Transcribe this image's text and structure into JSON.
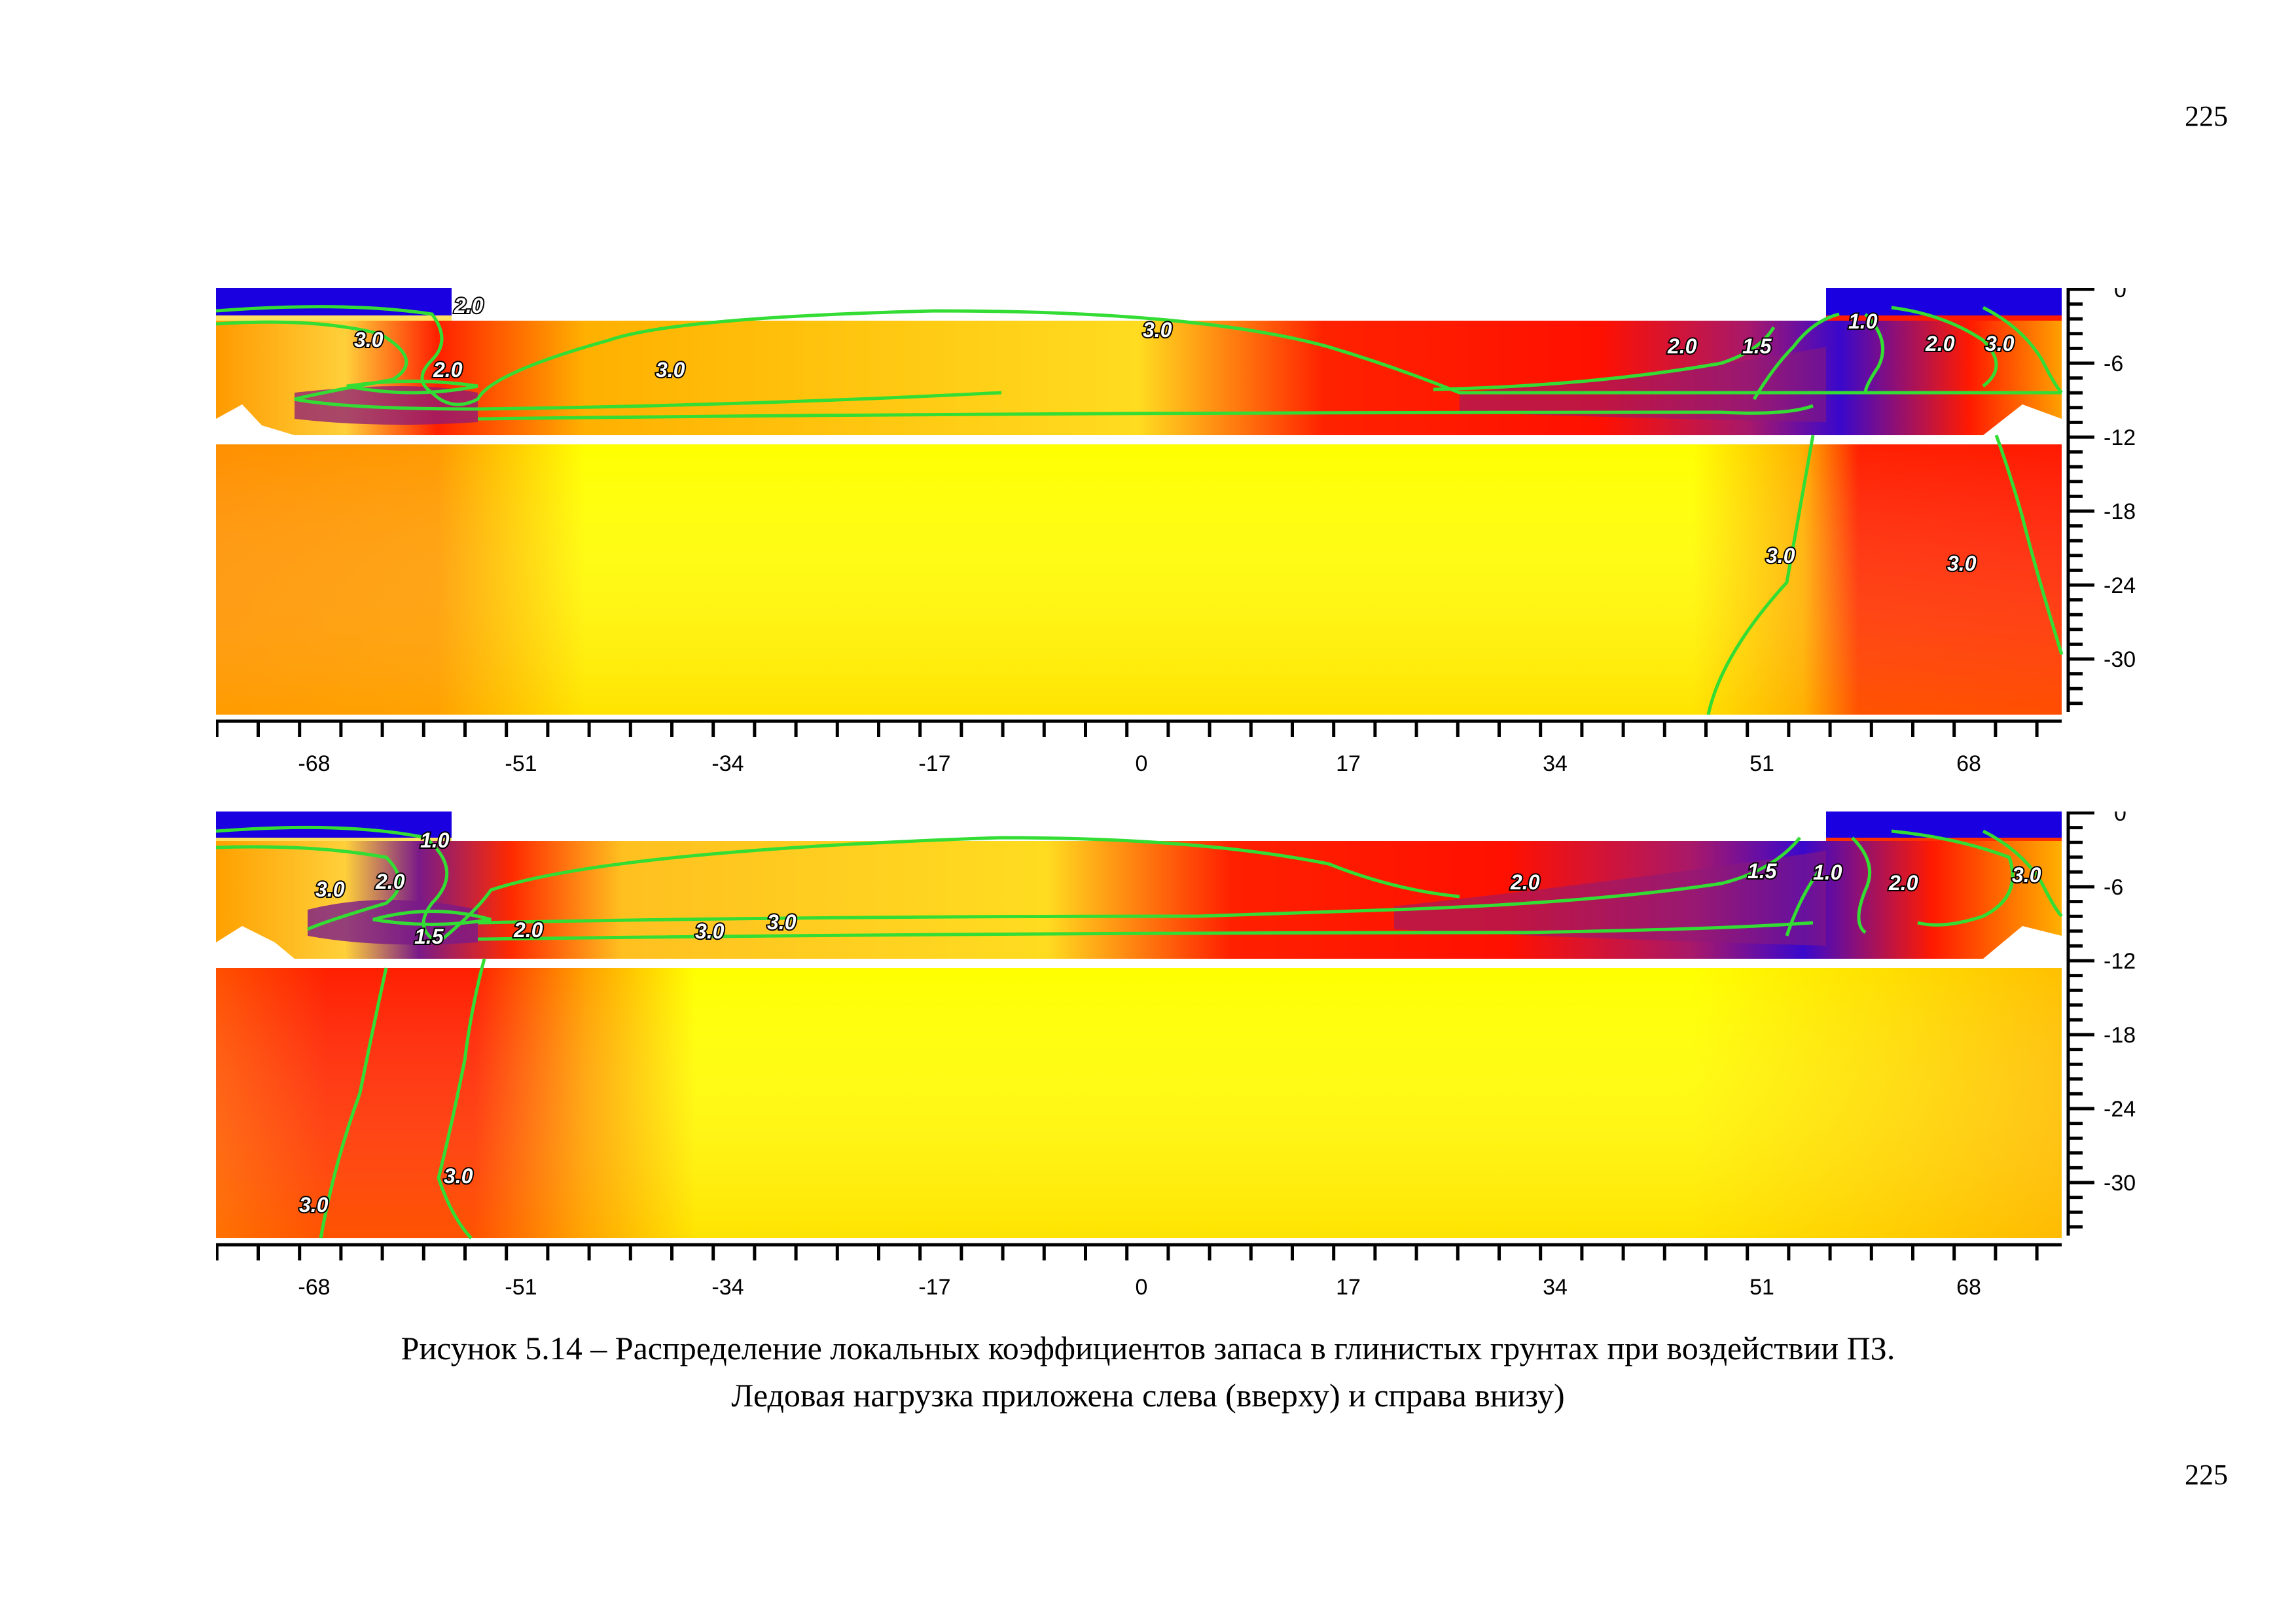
{
  "page": {
    "number_top": "225",
    "number_bottom": "225"
  },
  "figure": {
    "caption_line_1": "Рисунок 5.14 – Распределение локальных коэффициентов запаса в глинистых грунтах при воздействии ПЗ.",
    "caption_line_2": "Ледовая нагрузка приложена слева (вверху) и справа внизу)"
  },
  "colors": {
    "yellow": "#ffff00",
    "orange": "#ff9a00",
    "red": "#ff1a00",
    "purple": "#8c1a78",
    "blue": "#1a00e0",
    "contour": "#33dd33"
  },
  "chart_data": [
    {
      "type": "heatmap",
      "x_ticks": [
        "-68",
        "-51",
        "-34",
        "-17",
        "0",
        "17",
        "34",
        "51",
        "68"
      ],
      "y_ticks": [
        "0",
        "-6",
        "-12",
        "-18",
        "-24",
        "-30"
      ],
      "xlim": [
        -76,
        76
      ],
      "ylim": [
        -34,
        0
      ],
      "contour_levels": [
        "1.0",
        "1.5",
        "2.0",
        "3.0"
      ],
      "contour_labels": [
        {
          "text": "2.0",
          "x": -52.6,
          "y": -2.5
        },
        {
          "text": "3.0",
          "x": -62.5,
          "y": -5.2
        },
        {
          "text": "2.0",
          "x": -54.3,
          "y": -7.6
        },
        {
          "text": "3.0",
          "x": -33.2,
          "y": -7.6
        },
        {
          "text": "3.0",
          "x": 1.5,
          "y": -4.3
        },
        {
          "text": "2.0",
          "x": 45.5,
          "y": -5.8
        },
        {
          "text": "1.5",
          "x": 51.5,
          "y": -5.8
        },
        {
          "text": "1.0",
          "x": 60.0,
          "y": -3.7
        },
        {
          "text": "2.0",
          "x": 66.2,
          "y": -5.6
        },
        {
          "text": "3.0",
          "x": 71.0,
          "y": -5.6
        },
        {
          "text": "3.0",
          "x": 53.5,
          "y": -22.0
        },
        {
          "text": "3.0",
          "x": 68.0,
          "y": -22.6
        }
      ]
    },
    {
      "type": "heatmap",
      "x_ticks": [
        "-68",
        "-51",
        "-34",
        "-17",
        "0",
        "17",
        "34",
        "51",
        "68"
      ],
      "y_ticks": [
        "0",
        "-6",
        "-12",
        "-18",
        "-24",
        "-30"
      ],
      "xlim": [
        -76,
        76
      ],
      "ylim": [
        -34,
        0
      ],
      "contour_levels": [
        "1.0",
        "1.5",
        "2.0",
        "3.0"
      ],
      "contour_labels": [
        {
          "text": "1.0",
          "x": -57.3,
          "y": -2.6
        },
        {
          "text": "3.0",
          "x": -66.7,
          "y": -6.0
        },
        {
          "text": "2.0",
          "x": -61.2,
          "y": -5.5
        },
        {
          "text": "1.5",
          "x": -57.1,
          "y": -9.2
        },
        {
          "text": "2.0",
          "x": -48.8,
          "y": -8.8
        },
        {
          "text": "3.0",
          "x": -34.2,
          "y": -8.9
        },
        {
          "text": "3.0",
          "x": -28.8,
          "y": -8.2
        },
        {
          "text": "2.0",
          "x": 32.4,
          "y": -5.4
        },
        {
          "text": "1.5",
          "x": 51.5,
          "y": -4.6
        },
        {
          "text": "1.0",
          "x": 56.8,
          "y": -4.7
        },
        {
          "text": "2.0",
          "x": 63.0,
          "y": -5.5
        },
        {
          "text": "3.0",
          "x": 72.5,
          "y": -4.9
        },
        {
          "text": "3.0",
          "x": -67.8,
          "y": -27.7
        },
        {
          "text": "3.0",
          "x": -55.6,
          "y": -25.7
        }
      ]
    }
  ]
}
